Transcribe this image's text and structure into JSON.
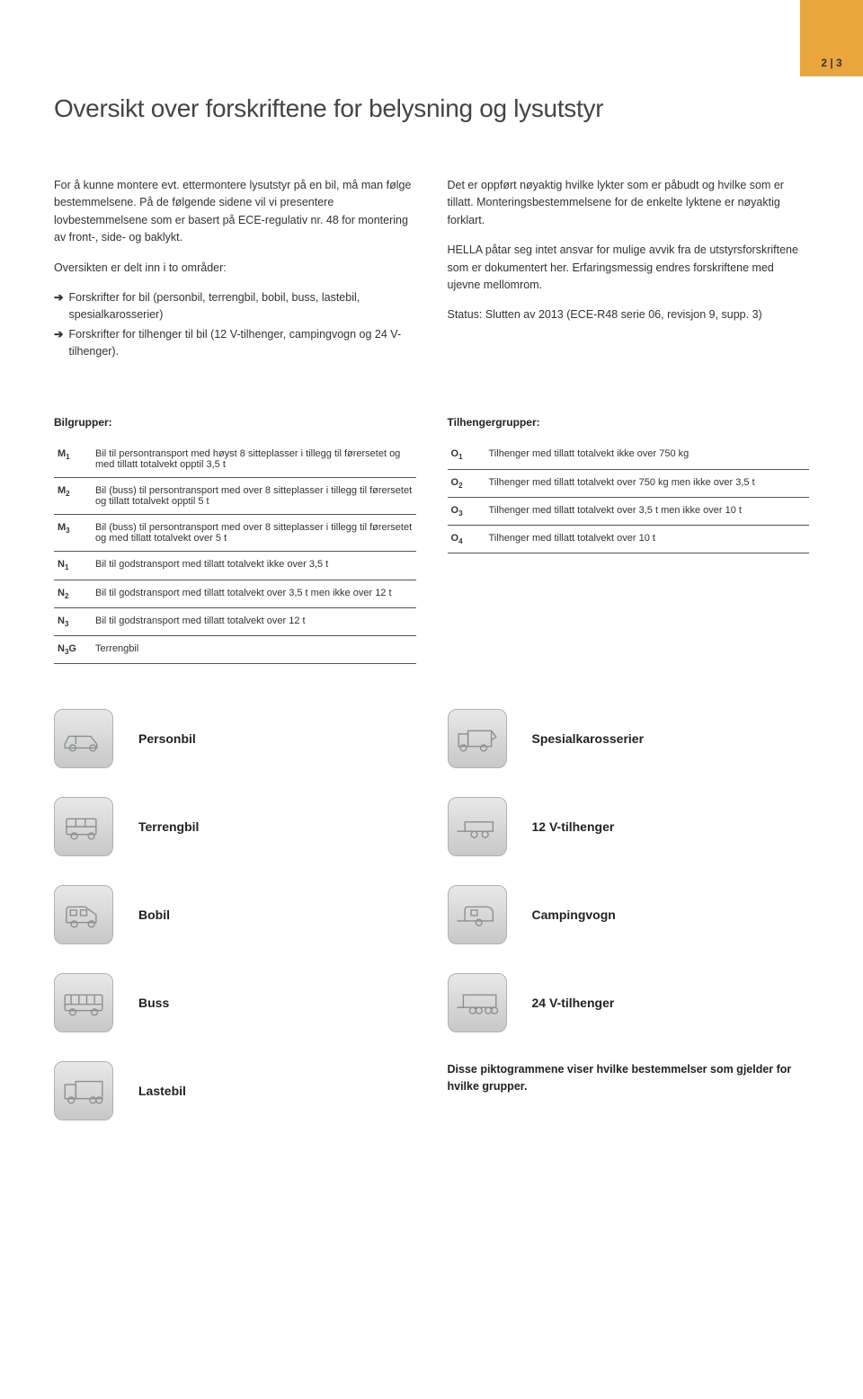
{
  "pageNumber": "2 | 3",
  "title": "Oversikt over forskriftene for belysning og lysutstyr",
  "leftCol": {
    "p1": "For å kunne montere evt. ettermontere lysutstyr på en bil, må man følge bestemmelsene. På de følgende sidene vil vi presentere lovbestemmelsene som er basert på ECE-regulativ nr. 48 for montering av front-, side- og baklykt.",
    "p2": "Oversikten er delt inn i to områder:",
    "b1": "Forskrifter for bil (personbil, terrengbil, bobil, buss, lastebil, spesialkarosserier)",
    "b2": "Forskrifter for tilhenger til bil (12 V-tilhenger, campingvogn og 24 V-tilhenger)."
  },
  "rightCol": {
    "p1": "Det er oppført nøyaktig hvilke lykter som er påbudt og hvilke som er tillatt. Monteringsbestemmelsene for de enkelte lyktene er nøyaktig forklart.",
    "p2": "HELLA påtar seg intet ansvar for mulige avvik fra de utstyrsforskriftene som er dokumentert her. Erfaringsmessig endres forskriftene med ujevne mellomrom.",
    "p3": "Status: Slutten av 2013 (ECE-R48 serie 06, revisjon 9, supp. 3)"
  },
  "bilgrupper": {
    "heading": "Bilgrupper:",
    "rows": [
      {
        "code": "M",
        "sub": "1",
        "desc": "Bil til persontransport med høyst 8 sitteplasser i tillegg til førersetet og med tillatt totalvekt opptil 3,5 t"
      },
      {
        "code": "M",
        "sub": "2",
        "desc": "Bil (buss) til persontransport med over 8 sitteplasser i tillegg til førersetet og tillatt totalvekt opptil 5 t"
      },
      {
        "code": "M",
        "sub": "3",
        "desc": "Bil (buss) til persontransport med over 8 sitteplasser i tillegg til førersetet og med tillatt totalvekt over 5 t"
      },
      {
        "code": "N",
        "sub": "1",
        "desc": "Bil til godstransport med tillatt totalvekt ikke over 3,5 t"
      },
      {
        "code": "N",
        "sub": "2",
        "desc": "Bil til godstransport med tillatt totalvekt over 3,5 t men ikke over 12 t"
      },
      {
        "code": "N",
        "sub": "3",
        "desc": "Bil til godstransport med tillatt totalvekt over 12 t"
      },
      {
        "code": "N",
        "sub": "3",
        "suffix": "G",
        "desc": "Terrengbil"
      }
    ]
  },
  "tilhengergrupper": {
    "heading": "Tilhengergrupper:",
    "rows": [
      {
        "code": "O",
        "sub": "1",
        "desc": "Tilhenger med tillatt totalvekt ikke over 750 kg"
      },
      {
        "code": "O",
        "sub": "2",
        "desc": "Tilhenger med tillatt totalvekt over 750 kg men ikke over 3,5 t"
      },
      {
        "code": "O",
        "sub": "3",
        "desc": "Tilhenger med tillatt totalvekt over 3,5 t men ikke over 10 t"
      },
      {
        "code": "O",
        "sub": "4",
        "desc": "Tilhenger med tillatt totalvekt over 10 t"
      }
    ]
  },
  "iconsLeft": [
    {
      "label": "Personbil",
      "icon": "car"
    },
    {
      "label": "Terrengbil",
      "icon": "suv"
    },
    {
      "label": "Bobil",
      "icon": "camper"
    },
    {
      "label": "Buss",
      "icon": "bus"
    },
    {
      "label": "Lastebil",
      "icon": "truck"
    }
  ],
  "iconsRight": [
    {
      "label": "Spesialkarosserier",
      "icon": "special"
    },
    {
      "label": "12 V-tilhenger",
      "icon": "trailer12"
    },
    {
      "label": "Campingvogn",
      "icon": "caravan"
    },
    {
      "label": "24 V-tilhenger",
      "icon": "trailer24"
    }
  ],
  "footnote": "Disse piktogrammene viser hvilke bestemmelser som gjelder for hvilke grupper.",
  "colors": {
    "tab": "#e8a63c",
    "iconStroke": "#8a8f92",
    "border": "#555555"
  }
}
